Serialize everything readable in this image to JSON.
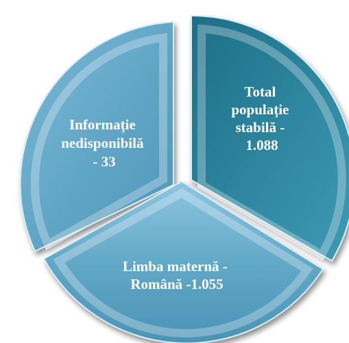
{
  "chart_data": {
    "type": "pie",
    "exploded": true,
    "slices": [
      {
        "lines": [
          "Total",
          "populație",
          "stabilă -",
          "1.088"
        ],
        "value": 1088,
        "color": "#2a7f97"
      },
      {
        "lines": [
          "Limba maternă -",
          "Română -1.055"
        ],
        "value": 1055,
        "color": "#5ba2c2"
      },
      {
        "lines": [
          "Informație",
          "nedisponibilă",
          "- 33"
        ],
        "value": 33,
        "color": "#66aacb"
      }
    ]
  }
}
